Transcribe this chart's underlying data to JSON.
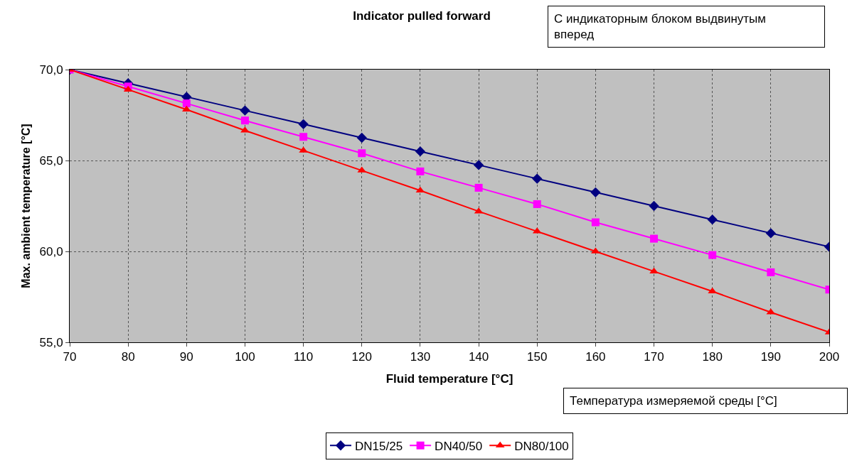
{
  "chart_data": {
    "type": "line",
    "title": "Indicator pulled forward",
    "xlabel": "Fluid temperature [°C]",
    "ylabel": "Max. ambient temperature [°C]",
    "annotations": [
      "С индикаторным блоком выдвинутым\nвперед",
      "Температура измеряемой среды [°C]"
    ],
    "x": [
      70,
      80,
      90,
      100,
      110,
      120,
      130,
      140,
      150,
      160,
      170,
      180,
      190,
      200
    ],
    "series": [
      {
        "name": "DN15/25",
        "color": "#000080",
        "marker": "diamond",
        "values": [
          70,
          69.25,
          68.5,
          67.75,
          67.0,
          66.25,
          65.5,
          64.75,
          64.0,
          63.25,
          62.5,
          61.75,
          61.0,
          60.25
        ]
      },
      {
        "name": "DN40/50",
        "color": "#ff00ff",
        "marker": "square",
        "values": [
          70,
          69.07,
          68.14,
          67.2,
          66.3,
          65.4,
          64.4,
          63.5,
          62.6,
          61.6,
          60.7,
          59.8,
          58.85,
          57.9
        ]
      },
      {
        "name": "DN80/100",
        "color": "#ff0000",
        "marker": "triangle",
        "values": [
          70,
          68.9,
          67.8,
          66.65,
          65.55,
          64.45,
          63.35,
          62.2,
          61.1,
          60.0,
          58.9,
          57.8,
          56.65,
          55.55
        ]
      }
    ],
    "xlim": [
      70,
      200
    ],
    "xticks": [
      70,
      80,
      90,
      100,
      110,
      120,
      130,
      140,
      150,
      160,
      170,
      180,
      190,
      200
    ],
    "ylim": [
      55,
      70
    ],
    "yticks": [
      {
        "value": 55,
        "label": "55,0"
      },
      {
        "value": 60,
        "label": "60,0"
      },
      {
        "value": 65,
        "label": "65,0"
      },
      {
        "value": 70,
        "label": "70,0"
      }
    ],
    "grid": true,
    "legend": "bottom",
    "line_style": "solid"
  }
}
